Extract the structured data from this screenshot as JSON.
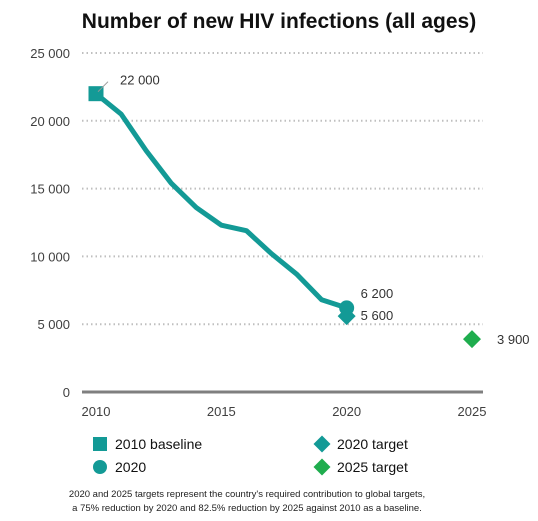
{
  "chart_data": {
    "type": "line",
    "title": "Number of new HIV infections (all ages)",
    "xlabel": "",
    "ylabel": "",
    "xlim": [
      2010,
      2025
    ],
    "ylim": [
      0,
      25000
    ],
    "x_ticks": [
      2010,
      2015,
      2020,
      2025
    ],
    "y_ticks": [
      0,
      5000,
      10000,
      15000,
      20000,
      25000
    ],
    "x_tick_labels": [
      "2010",
      "2015",
      "2020",
      "2025"
    ],
    "y_tick_labels": [
      "0",
      "5 000",
      "10 000",
      "15 000",
      "20 000",
      "25 000"
    ],
    "grid": "horizontal dotted",
    "legend_position": "bottom",
    "series": [
      {
        "name": "",
        "color": "#139a96",
        "x": [
          2010,
          2011,
          2012,
          2013,
          2014,
          2015,
          2016,
          2017,
          2018,
          2019,
          2020
        ],
        "values": [
          22000,
          20500,
          17800,
          15400,
          13600,
          12300,
          11900,
          10200,
          8700,
          6800,
          6200
        ]
      }
    ],
    "markers": [
      {
        "name": "2010 baseline",
        "shape": "square",
        "color": "#139a96",
        "x": 2010,
        "y": 22000,
        "label": "22 000"
      },
      {
        "name": "2020",
        "shape": "circle",
        "color": "#139a96",
        "x": 2020,
        "y": 6200,
        "label": "6 200"
      },
      {
        "name": "2020 target",
        "shape": "diamond",
        "color": "#139a96",
        "x": 2020,
        "y": 5600,
        "label": "5 600"
      },
      {
        "name": "2025 target",
        "shape": "diamond",
        "color": "#1fad4e",
        "x": 2025,
        "y": 3900,
        "label": "3 900"
      }
    ],
    "legend": [
      {
        "label": "2010 baseline",
        "shape": "square",
        "color": "#139a96"
      },
      {
        "label": "2020 target",
        "shape": "diamond",
        "color": "#139a96"
      },
      {
        "label": "2020",
        "shape": "circle",
        "color": "#139a96"
      },
      {
        "label": "2025 target",
        "shape": "diamond",
        "color": "#1fad4e"
      }
    ],
    "footnote": [
      "2020 and 2025 targets represent the country's required contribution to global targets,",
      "a 75% reduction by 2020 and 82.5% reduction by 2025 against 2010 as a baseline."
    ]
  }
}
